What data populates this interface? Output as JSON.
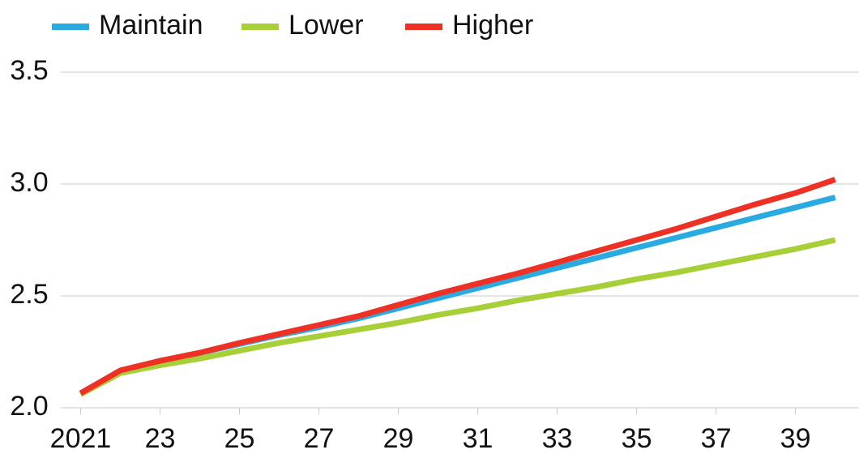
{
  "chart_data": {
    "type": "line",
    "x": [
      2021,
      2022,
      2023,
      2024,
      2025,
      2026,
      2027,
      2028,
      2029,
      2030,
      2031,
      2032,
      2033,
      2034,
      2035,
      2036,
      2037,
      2038,
      2039,
      2040
    ],
    "series": [
      {
        "name": "Maintain",
        "color": "#29abe2",
        "values": [
          2.065,
          2.165,
          2.21,
          2.245,
          2.285,
          2.325,
          2.36,
          2.4,
          2.445,
          2.49,
          2.535,
          2.58,
          2.625,
          2.67,
          2.715,
          2.76,
          2.805,
          2.85,
          2.895,
          2.94
        ]
      },
      {
        "name": "Lower",
        "color": "#a6cf38",
        "values": [
          2.06,
          2.155,
          2.19,
          2.22,
          2.255,
          2.29,
          2.32,
          2.35,
          2.38,
          2.415,
          2.445,
          2.48,
          2.51,
          2.54,
          2.575,
          2.605,
          2.64,
          2.675,
          2.71,
          2.75
        ]
      },
      {
        "name": "Higher",
        "color": "#ee3124",
        "values": [
          2.065,
          2.167,
          2.21,
          2.246,
          2.29,
          2.33,
          2.37,
          2.41,
          2.46,
          2.51,
          2.555,
          2.6,
          2.65,
          2.7,
          2.75,
          2.8,
          2.855,
          2.91,
          2.96,
          3.02
        ]
      }
    ],
    "xlim": [
      2020.5,
      2040.6
    ],
    "xticks": [
      2021,
      {
        "value": 2023,
        "label": "23"
      },
      {
        "value": 2025,
        "label": "25"
      },
      {
        "value": 2027,
        "label": "27"
      },
      {
        "value": 2029,
        "label": "29"
      },
      {
        "value": 2031,
        "label": "31"
      },
      {
        "value": 2033,
        "label": "33"
      },
      {
        "value": 2035,
        "label": "35"
      },
      {
        "value": 2037,
        "label": "37"
      },
      {
        "value": 2039,
        "label": "39"
      }
    ],
    "ylim": [
      2,
      3.5
    ],
    "yticks": [
      {
        "value": 2,
        "label": "2.0"
      },
      2.5,
      {
        "value": 3,
        "label": "3.0"
      },
      3.5
    ],
    "grid": true
  }
}
